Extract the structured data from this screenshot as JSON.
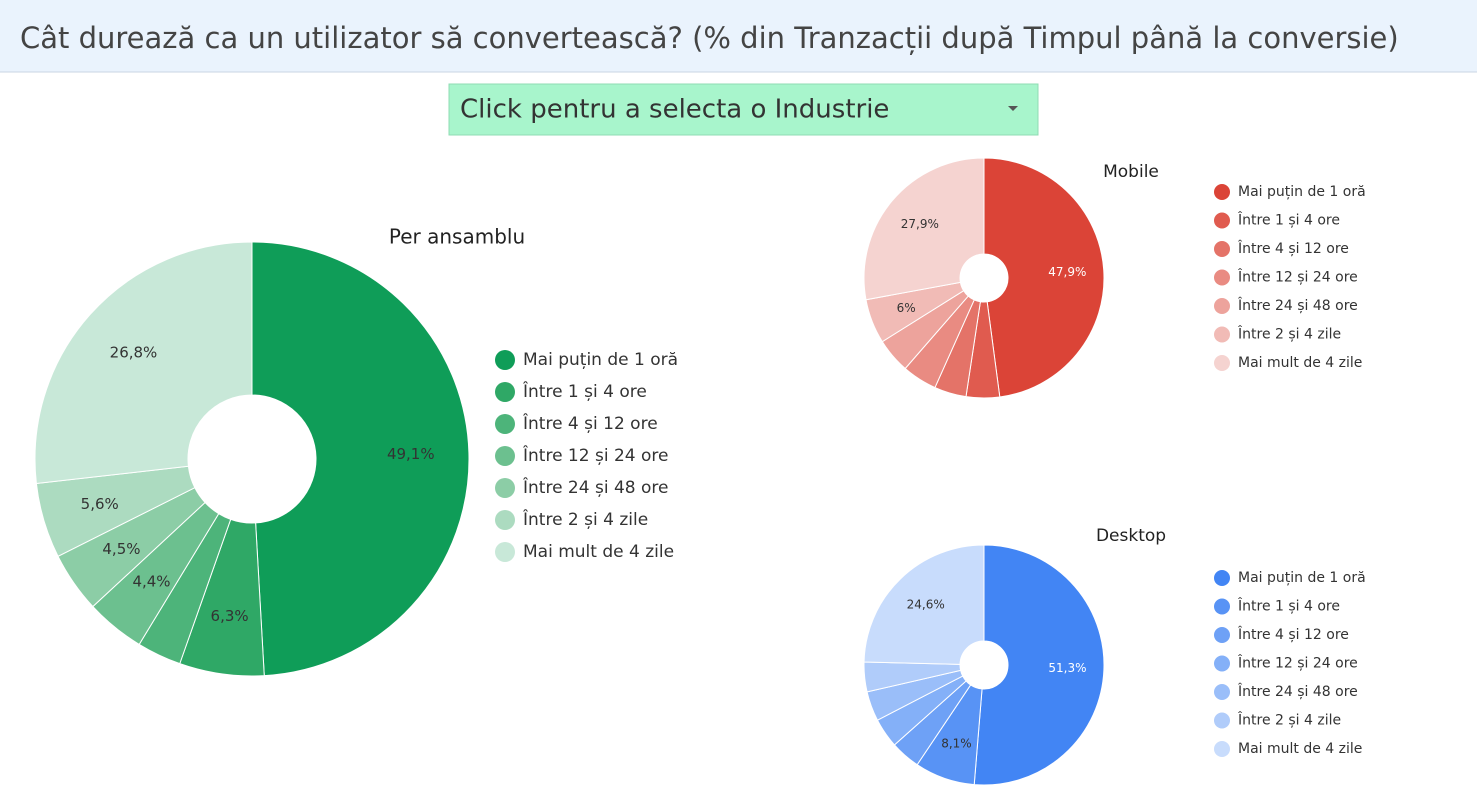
{
  "header": {
    "title": "Cât durează ca un utilizator să convertească? (% din Tranzacții după Timpul până la conversie)"
  },
  "dropdown": {
    "label": "Click pentru a selecta o Industrie"
  },
  "chart_data": [
    {
      "type": "donut",
      "title": "Per ansamblu",
      "categories": [
        "Mai puțin de 1 oră",
        "Între 1 și 4 ore",
        "Între 4 și 12 ore",
        "Între 12 și 24 ore",
        "Între 24 și 48 ore",
        "Între 2 și 4 zile",
        "Mai mult de 4 zile"
      ],
      "values": [
        49.1,
        6.3,
        3.3,
        4.4,
        4.5,
        5.6,
        26.8
      ],
      "value_labels": [
        "49,1%",
        "6,3%",
        null,
        "4,4%",
        "4,5%",
        "5,6%",
        "26,8%"
      ],
      "colors": [
        "#0f9d58",
        "#2fa866",
        "#4db47a",
        "#6cc08f",
        "#8ccda6",
        "#acdbc0",
        "#c8e8d8"
      ]
    },
    {
      "type": "donut",
      "title": "Mobile",
      "categories": [
        "Mai puțin de 1 oră",
        "Între 1 și 4 ore",
        "Între 4 și 12 ore",
        "Între 12 și 24 ore",
        "Între 24 și 48 ore",
        "Între 2 și 4 zile",
        "Mai mult de 4 zile"
      ],
      "values": [
        47.9,
        4.5,
        4.3,
        4.7,
        4.7,
        6,
        27.9
      ],
      "value_labels": [
        "47,9%",
        null,
        null,
        null,
        null,
        "6%",
        "27,9%"
      ],
      "colors": [
        "#db4437",
        "#e05b4f",
        "#e47368",
        "#e98b82",
        "#eda39c",
        "#f1bbb6",
        "#f5d3d0"
      ]
    },
    {
      "type": "donut",
      "title": "Desktop",
      "categories": [
        "Mai puțin de 1 oră",
        "Între 1 și 4 ore",
        "Între 4 și 12 ore",
        "Între 12 și 24 ore",
        "Între 24 și 48 ore",
        "Între 2 și 4 zile",
        "Mai mult de 4 zile"
      ],
      "values": [
        51.3,
        8.1,
        4,
        4,
        4,
        4,
        24.6
      ],
      "value_labels": [
        "51,3%",
        "8,1%",
        null,
        null,
        null,
        null,
        "24,6%"
      ],
      "colors": [
        "#4285f4",
        "#5893f5",
        "#6ea1f6",
        "#84b0f8",
        "#9abef9",
        "#b0ccfa",
        "#c8dcfc"
      ]
    }
  ]
}
